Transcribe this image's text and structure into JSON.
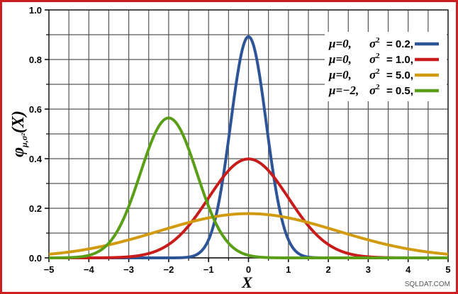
{
  "chart_data": {
    "type": "line",
    "title": "",
    "xlabel": "X",
    "ylabel_symbol": "φ",
    "ylabel_subscript": "μ,σ²",
    "ylabel_arg": "(X)",
    "xlim": [
      -5,
      5
    ],
    "ylim": [
      0,
      1.0
    ],
    "x_ticks": [
      -5,
      -4,
      -3,
      -2,
      -1,
      0,
      1,
      2,
      3,
      4,
      5
    ],
    "x_tick_labels": [
      "−5",
      "−4",
      "−3",
      "−2",
      "−1",
      "0",
      "1",
      "2",
      "3",
      "4",
      "5"
    ],
    "y_ticks": [
      0.0,
      0.2,
      0.4,
      0.6,
      0.8,
      1.0
    ],
    "y_tick_labels": [
      "0.0",
      "0.2",
      "0.4",
      "0.6",
      "0.8",
      "1.0"
    ],
    "grid": true,
    "legend_position": "top-right",
    "series": [
      {
        "mu_label": "μ=0,",
        "sigma_label": "σ",
        "sigma_value": "= 0.2,",
        "mu": 0,
        "variance": 0.2,
        "color": "#2c5496"
      },
      {
        "mu_label": "μ=0,",
        "sigma_label": "σ",
        "sigma_value": "= 1.0,",
        "mu": 0,
        "variance": 1.0,
        "color": "#c81b1b"
      },
      {
        "mu_label": "μ=0,",
        "sigma_label": "σ",
        "sigma_value": "= 5.0,",
        "mu": 0,
        "variance": 5.0,
        "color": "#d19a0f"
      },
      {
        "mu_label": "μ=−2,",
        "sigma_label": "σ",
        "sigma_value": "= 0.5,",
        "mu": -2,
        "variance": 0.5,
        "color": "#5a9e18"
      }
    ]
  },
  "watermark": "SQLDAT.COM"
}
